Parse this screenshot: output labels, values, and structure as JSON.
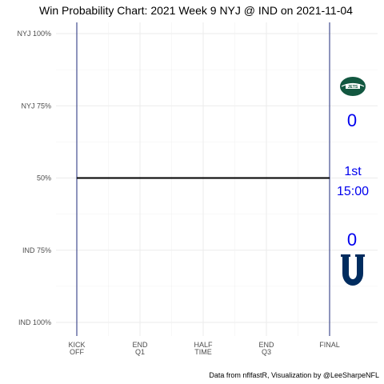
{
  "chart_data": {
    "type": "line",
    "title": "Win Probability Chart: 2021 Week 9 NYJ @ IND on 2021-11-04",
    "caption": "Data from nflfastR, Visualization by @LeeSharpeNFL",
    "y_ticks": [
      {
        "value": 1.0,
        "label": "NYJ 100%"
      },
      {
        "value": 0.75,
        "label": "NYJ 75%"
      },
      {
        "value": 0.5,
        "label": "50%"
      },
      {
        "value": 0.25,
        "label": "IND 75%"
      },
      {
        "value": 0.0,
        "label": "IND 100%"
      }
    ],
    "x_ticks": [
      {
        "value": 3600,
        "line1": "KICK",
        "line2": "OFF"
      },
      {
        "value": 2700,
        "line1": "END",
        "line2": "Q1"
      },
      {
        "value": 1800,
        "line1": "HALF",
        "line2": "TIME"
      },
      {
        "value": 900,
        "line1": "END",
        "line2": "Q3"
      },
      {
        "value": 0,
        "line1": "FINAL",
        "line2": ""
      }
    ],
    "xlim": [
      3600,
      0
    ],
    "ylim": [
      0,
      1
    ],
    "grid": true,
    "series": [
      {
        "values": [
          {
            "x": 3600,
            "y": 0.5
          },
          {
            "x": 0,
            "y": 0.5
          }
        ],
        "color": "#000000"
      }
    ],
    "vlines": [
      {
        "x": 3600,
        "color": "#1e2a78"
      },
      {
        "x": 0,
        "color": "#1e2a78"
      }
    ],
    "away": {
      "team": "NYJ",
      "score": "0",
      "color": "#125740"
    },
    "home": {
      "team": "IND",
      "score": "0",
      "color": "#002c5f"
    },
    "game_state": {
      "quarter": "1st",
      "clock": "15:00"
    },
    "label_color": "#0000ee"
  }
}
